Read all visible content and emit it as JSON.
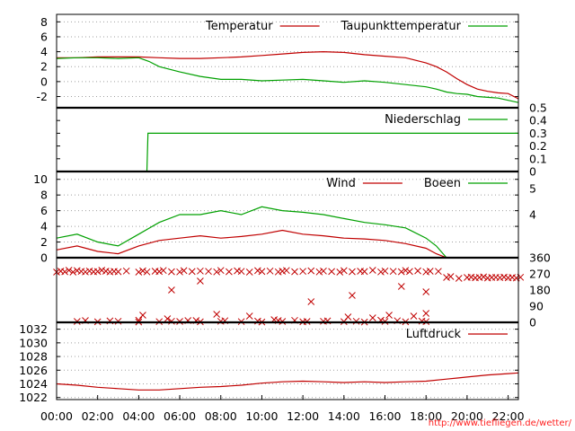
{
  "footer_text": "http://www.tiefliegen.de/wetter/",
  "chart_data": [
    {
      "type": "line",
      "ylim": [
        -3.5,
        9
      ],
      "yticks": [
        -2,
        0,
        2,
        4,
        6,
        8
      ],
      "ytick_labels": [
        "-2",
        "0",
        "2",
        "4",
        "6",
        "8"
      ],
      "legend_position": "top-right",
      "grid": true,
      "series": [
        {
          "name": "Temperatur",
          "color": "#c00000",
          "x": [
            0,
            1,
            2,
            3,
            4,
            5,
            6,
            7,
            8,
            9,
            10,
            11,
            12,
            13,
            14,
            15,
            16,
            17,
            18,
            18.5,
            19,
            19.5,
            20,
            20.5,
            21,
            21.5,
            22,
            22.5
          ],
          "values": [
            3.2,
            3.2,
            3.3,
            3.3,
            3.3,
            3.2,
            3.1,
            3.1,
            3.2,
            3.3,
            3.5,
            3.7,
            3.9,
            4.0,
            3.9,
            3.6,
            3.4,
            3.2,
            2.5,
            2.0,
            1.3,
            0.4,
            -0.4,
            -1.0,
            -1.3,
            -1.5,
            -1.6,
            -2.3
          ]
        },
        {
          "name": "Taupunkttemperatur",
          "color": "#00a000",
          "x": [
            0,
            1,
            2,
            3,
            4,
            4.5,
            5,
            6,
            7,
            8,
            9,
            10,
            11,
            12,
            13,
            14,
            15,
            16,
            17,
            18,
            18.5,
            19,
            19.5,
            20,
            20.5,
            21,
            21.5,
            22,
            22.5
          ],
          "values": [
            3.1,
            3.2,
            3.2,
            3.1,
            3.2,
            2.7,
            2.0,
            1.3,
            0.7,
            0.3,
            0.3,
            0.1,
            0.2,
            0.3,
            0.1,
            -0.1,
            0.1,
            -0.1,
            -0.4,
            -0.7,
            -1.0,
            -1.4,
            -1.6,
            -1.7,
            -2.0,
            -2.1,
            -2.2,
            -2.5,
            -2.8
          ]
        }
      ]
    },
    {
      "type": "line",
      "ylim": [
        0,
        0.5
      ],
      "yticks": [
        0,
        0.1,
        0.2,
        0.3,
        0.4,
        0.5
      ],
      "ytick_labels": [
        "0",
        "0.1",
        "0.2",
        "0.3",
        "0.4",
        "0.5"
      ],
      "legend_position": "top-right",
      "series": [
        {
          "name": "Niederschlag",
          "color": "#00a000",
          "x": [
            0,
            4.4,
            4.45,
            22.5
          ],
          "values": [
            0,
            0,
            0.3,
            0.3
          ]
        }
      ]
    },
    {
      "type": "line",
      "ylim": [
        0,
        11
      ],
      "yticks": [
        0,
        2,
        4,
        6,
        8,
        10
      ],
      "ytick_labels": [
        "0",
        "2",
        "4",
        "6",
        "8",
        "10"
      ],
      "right_ticks": [
        4,
        5
      ],
      "right_tick_labels": [
        "4",
        "5"
      ],
      "legend_position": "top-right",
      "grid": true,
      "series": [
        {
          "name": "Wind",
          "color": "#c00000",
          "x": [
            0,
            1,
            2,
            3,
            4,
            5,
            6,
            7,
            8,
            9,
            10,
            11,
            12,
            13,
            14,
            15,
            16,
            17,
            18,
            18.5,
            19
          ],
          "values": [
            1.0,
            1.5,
            0.8,
            0.5,
            1.5,
            2.2,
            2.5,
            2.8,
            2.5,
            2.7,
            3.0,
            3.5,
            3.0,
            2.8,
            2.5,
            2.4,
            2.2,
            1.8,
            1.2,
            0.5,
            0
          ]
        },
        {
          "name": "Boeen",
          "color": "#00a000",
          "x": [
            0,
            1,
            2,
            3,
            4,
            5,
            6,
            7,
            8,
            9,
            10,
            11,
            12,
            13,
            14,
            15,
            16,
            17,
            18,
            18.5,
            19
          ],
          "values": [
            2.5,
            3.0,
            2.0,
            1.5,
            3.0,
            4.5,
            5.5,
            5.5,
            6.0,
            5.5,
            6.5,
            6.0,
            5.8,
            5.5,
            5.0,
            4.5,
            4.2,
            3.8,
            2.5,
            1.5,
            0
          ]
        }
      ]
    },
    {
      "type": "scatter",
      "ylim": [
        0,
        360
      ],
      "right_ticks": [
        0,
        90,
        180,
        270,
        360
      ],
      "right_tick_labels": [
        "0",
        "90",
        "180",
        "270",
        "360"
      ],
      "series": [
        {
          "name": "",
          "color": "#c00000",
          "marker": "x",
          "x": [
            0,
            0.2,
            0.4,
            0.6,
            0.8,
            1,
            1.2,
            1.4,
            1.6,
            1.8,
            2,
            2.2,
            2.4,
            2.6,
            2.8,
            3,
            3.4,
            4,
            4.2,
            4.4,
            4.8,
            5,
            5.2,
            5.6,
            6,
            6.2,
            6.6,
            7,
            7.4,
            7.8,
            8,
            8.4,
            8.8,
            9,
            9.4,
            9.8,
            10,
            10.4,
            10.8,
            11,
            11.2,
            11.6,
            12,
            12.4,
            12.8,
            13,
            13.4,
            13.8,
            14,
            14.4,
            14.8,
            15,
            15.4,
            15.8,
            16,
            16.4,
            16.8,
            17,
            17.2,
            17.6,
            18,
            18.2,
            18.6,
            19,
            19.2,
            19.6,
            20,
            20.2,
            20.4,
            20.6,
            20.8,
            21,
            21.2,
            21.4,
            21.6,
            21.8,
            22,
            22.2,
            22.4,
            22.6,
            1,
            2,
            3,
            4,
            5,
            6,
            7,
            8,
            9,
            10,
            11,
            12,
            13,
            14,
            15,
            16,
            17,
            18,
            4.2,
            5.4,
            6.4,
            7.8,
            9.4,
            10.6,
            12.2,
            14.2,
            15.4,
            16.2,
            17.4,
            18.0,
            1.4,
            2.6,
            4.0,
            5.6,
            6.8,
            8.2,
            9.8,
            10.8,
            11.6,
            13.2,
            14.6,
            15.8,
            16.6,
            17.8,
            5.6,
            7.0,
            12.4,
            14.4,
            16.8,
            18.0
          ],
          "values": [
            280,
            285,
            282,
            290,
            280,
            288,
            284,
            281,
            286,
            282,
            283,
            290,
            285,
            281,
            284,
            282,
            286,
            280,
            287,
            281,
            285,
            283,
            289,
            282,
            281,
            288,
            283,
            286,
            284,
            281,
            289,
            282,
            287,
            284,
            280,
            288,
            283,
            286,
            281,
            285,
            289,
            282,
            284,
            287,
            281,
            286,
            283,
            280,
            288,
            282,
            285,
            283,
            290,
            281,
            286,
            284,
            282,
            289,
            283,
            287,
            281,
            285,
            284,
            250,
            255,
            245,
            250,
            252,
            248,
            250,
            253,
            247,
            250,
            251,
            249,
            252,
            248,
            250,
            247,
            251,
            5,
            3,
            6,
            2,
            4,
            5,
            3,
            6,
            4,
            2,
            5,
            3,
            6,
            4,
            2,
            5,
            3,
            4,
            40,
            20,
            10,
            45,
            35,
            15,
            5,
            30,
            25,
            40,
            35,
            50,
            10,
            8,
            12,
            6,
            10,
            9,
            7,
            10,
            11,
            8,
            6,
            12,
            9,
            7,
            180,
            230,
            115,
            150,
            200,
            170
          ]
        }
      ]
    },
    {
      "type": "line",
      "ylim": [
        1021.7,
        1033
      ],
      "yticks": [
        1022,
        1024,
        1026,
        1028,
        1030,
        1032
      ],
      "ytick_labels": [
        "1022",
        "1024",
        "1026",
        "1028",
        "1030",
        "1032"
      ],
      "legend_position": "top-right",
      "series": [
        {
          "name": "Luftdruck",
          "color": "#c00000",
          "x": [
            0,
            1,
            2,
            3,
            4,
            5,
            6,
            7,
            8,
            9,
            10,
            11,
            12,
            13,
            14,
            15,
            16,
            17,
            18,
            19,
            20,
            21,
            22,
            22.5
          ],
          "values": [
            1024.0,
            1023.8,
            1023.5,
            1023.3,
            1023.1,
            1023.1,
            1023.3,
            1023.5,
            1023.6,
            1023.8,
            1024.1,
            1024.3,
            1024.4,
            1024.3,
            1024.2,
            1024.3,
            1024.2,
            1024.3,
            1024.4,
            1024.7,
            1025.0,
            1025.3,
            1025.5,
            1025.6
          ]
        }
      ]
    }
  ],
  "x_axis": {
    "range": [
      0,
      22.5
    ],
    "ticks": [
      0,
      2,
      4,
      6,
      8,
      10,
      12,
      14,
      16,
      18,
      20,
      22
    ],
    "tick_labels": [
      "00:00",
      "02:00",
      "04:00",
      "06:00",
      "08:00",
      "10:00",
      "12:00",
      "14:00",
      "16:00",
      "18:00",
      "20:00",
      "22:00"
    ]
  }
}
